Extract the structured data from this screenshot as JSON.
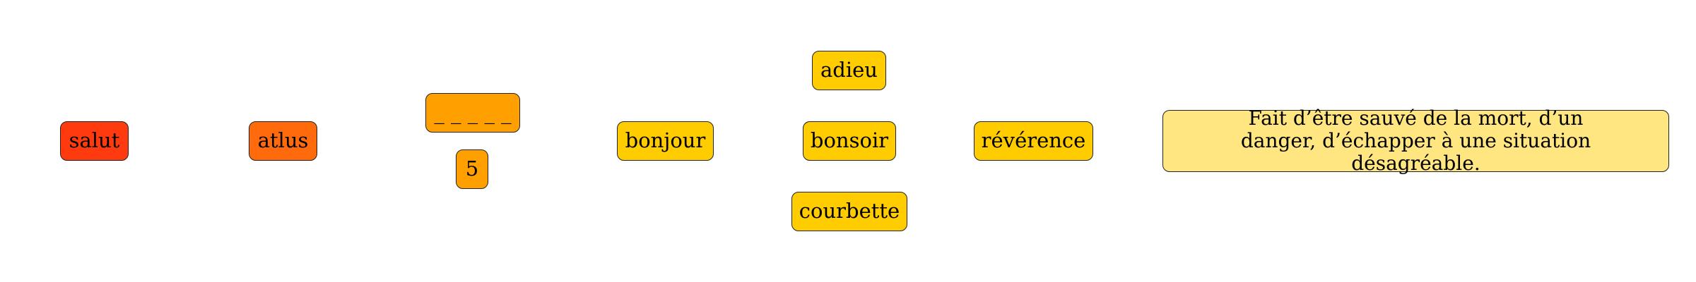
{
  "nodes": {
    "salut": {
      "label": "salut",
      "color": "#ff3a0f"
    },
    "atlus": {
      "label": "atlus",
      "color": "#ff6a0d"
    },
    "blank": {
      "label": "_ _ _ _ _",
      "color": "#ffa000"
    },
    "count": {
      "label": "5",
      "color": "#ffa000"
    },
    "bonjour": {
      "label": "bonjour",
      "color": "#ffcc00"
    },
    "adieu": {
      "label": "adieu",
      "color": "#ffcc00"
    },
    "bonsoir": {
      "label": "bonsoir",
      "color": "#ffcc00"
    },
    "courbette": {
      "label": "courbette",
      "color": "#ffcc00"
    },
    "reverence": {
      "label": "révérence",
      "color": "#ffcc00"
    },
    "definition": {
      "label": "Fait d’être sauvé de la mort, d’un\n danger, d’échapper à une situation désagréable.",
      "color": "#ffe680"
    }
  }
}
